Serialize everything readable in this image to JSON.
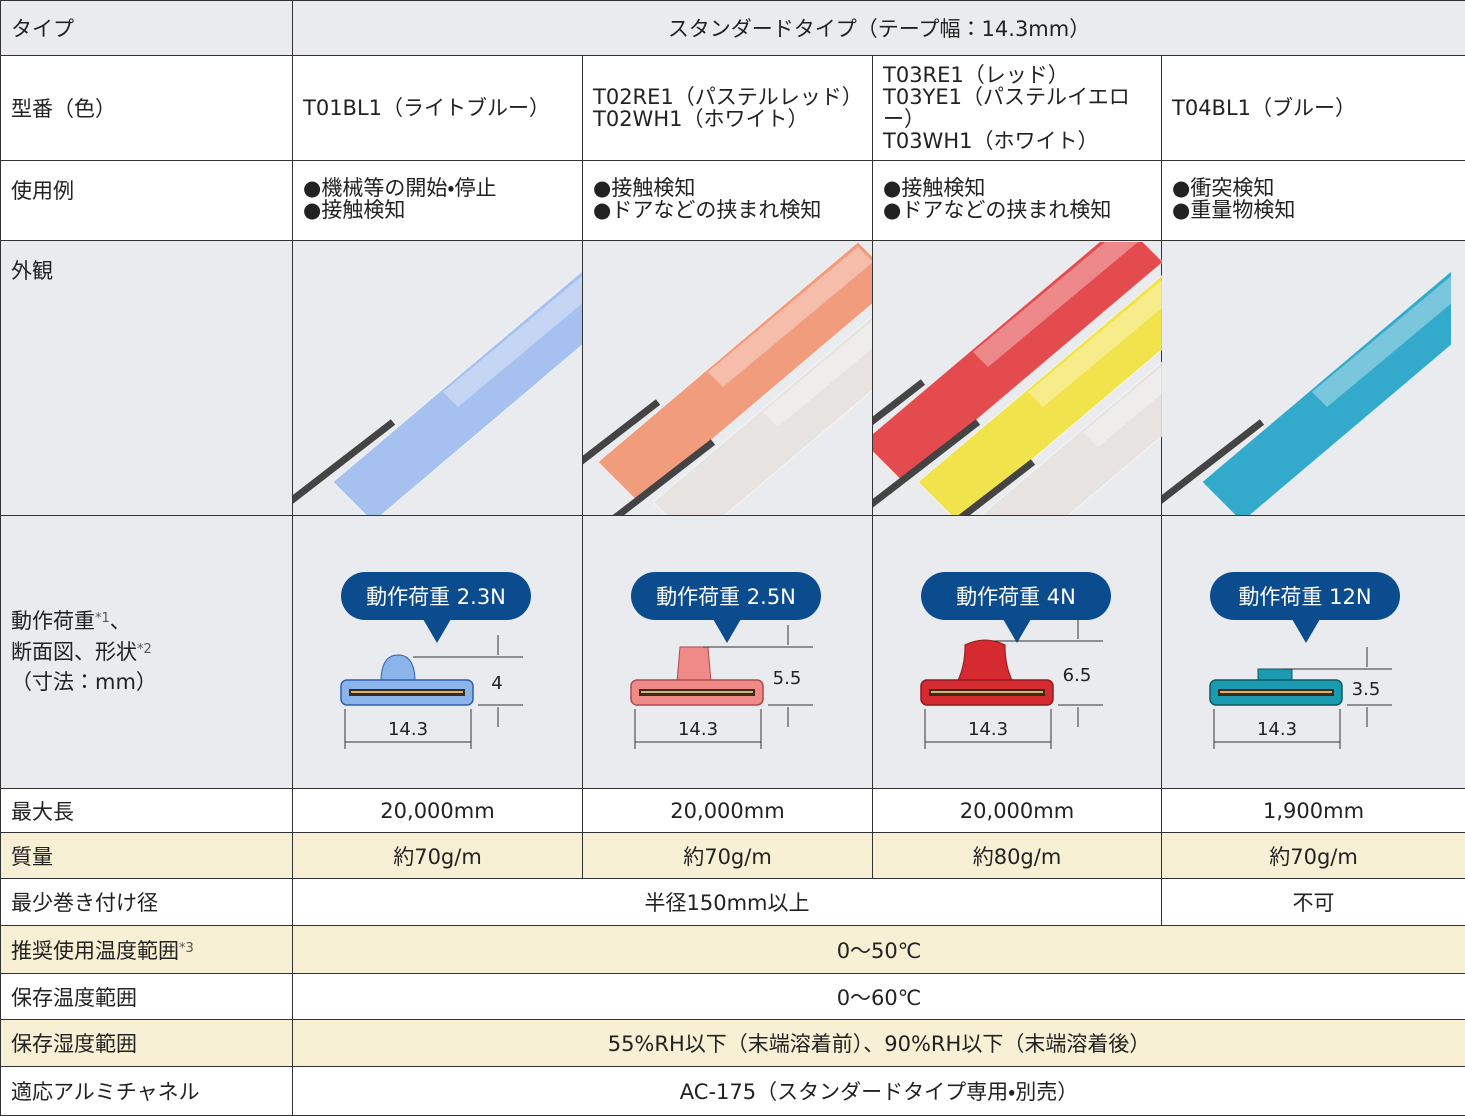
{
  "table": {
    "header": [
      "タイプ",
      "スタンダードタイプ（テープ幅：14.3mm）"
    ],
    "model": {
      "label": "型番（色）",
      "cells": [
        [
          "T01BL1（ライトブルー）"
        ],
        [
          "T02RE1（パステルレッド）",
          "T02WH1（ホワイト）"
        ],
        [
          "T03RE1（レッド）",
          "T03YE1（パステルイエロー）",
          "T03WH1（ホワイト）"
        ],
        [
          "T04BL1（ブルー）"
        ]
      ]
    },
    "usage": {
      "label": "使用例",
      "cells": [
        [
          "●機械等の開始・停止",
          "●接触検知"
        ],
        [
          "●接触検知",
          "●ドアなどの挟まれ検知"
        ],
        [
          "●接触検知",
          "●ドアなどの挟まれ検知"
        ],
        [
          "●衝突検知",
          "●重量物検知"
        ]
      ]
    },
    "appearance": {
      "label": "外観"
    },
    "load": {
      "label": [
        [
          "動作荷重",
          "*1",
          "、"
        ],
        [
          "断面図、形状",
          "*2"
        ],
        [
          "（寸法：mm）"
        ]
      ],
      "cells": [
        {
          "callout": "動作荷重 2.3N",
          "height": "4",
          "width": "14.3"
        },
        {
          "callout": "動作荷重 2.5N",
          "height": "5.5",
          "width": "14.3"
        },
        {
          "callout": "動作荷重 4N",
          "height": "6.5",
          "width": "14.3"
        },
        {
          "callout": "動作荷重 12N",
          "height": "3.5",
          "width": "14.3"
        }
      ]
    },
    "specs": [
      {
        "label": "最大長",
        "cells": [
          "20,000mm",
          "20,000mm",
          "20,000mm",
          "1,900mm"
        ]
      },
      {
        "label": "質量",
        "cells": [
          "約70g/m",
          "約70g/m",
          "約80g/m",
          "約70g/m"
        ]
      },
      {
        "label": "最少巻き付け径",
        "cells": [
          "半径150mm以上",
          "不可"
        ]
      },
      {
        "label": "推奨使用温度範囲",
        "note": "*3",
        "cells": [
          "0～50℃"
        ]
      },
      {
        "label": "保存温度範囲",
        "cells": [
          "0～60℃"
        ]
      },
      {
        "label": "保存湿度範囲",
        "cells": [
          "55%RH以下（末端溶着前）、90%RH以下（末端溶着後）"
        ]
      },
      {
        "label": "適応アルミチャネル",
        "cells": [
          "AC-175（スタンダードタイプ専用・別売）"
        ]
      }
    ]
  }
}
